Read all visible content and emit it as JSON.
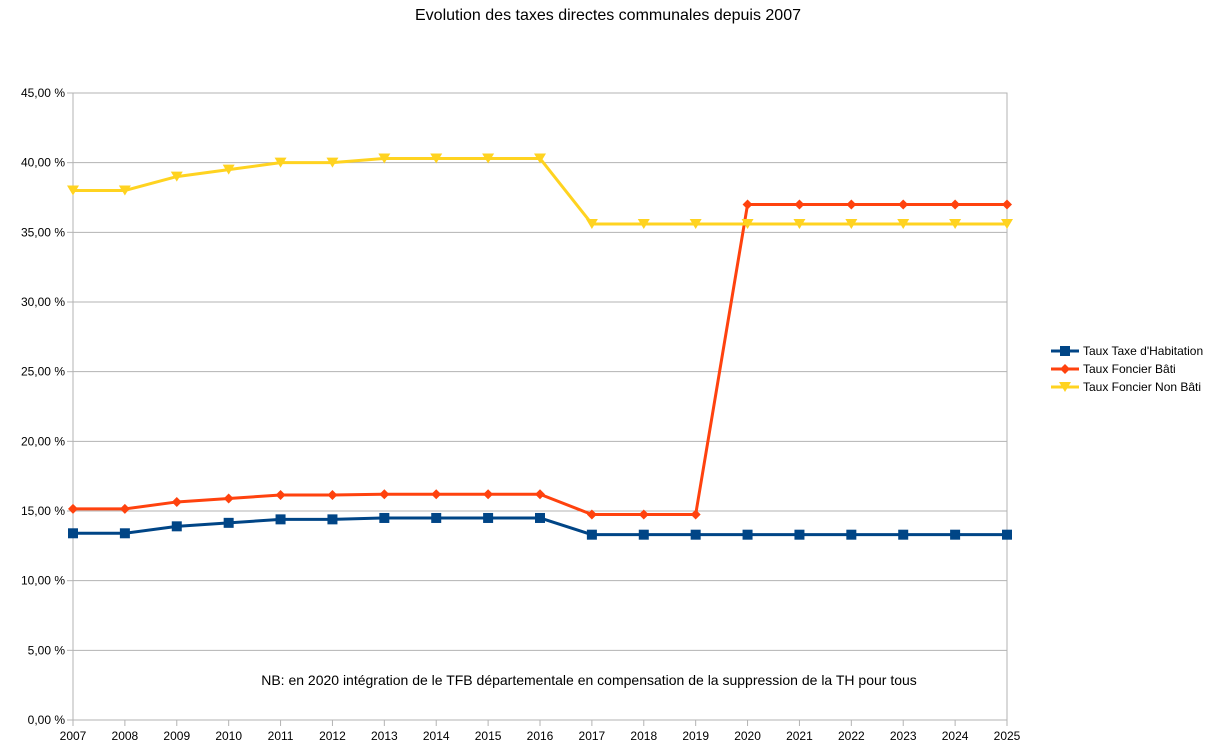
{
  "chart_data": {
    "type": "line",
    "title": "Evolution des taxes directes communales depuis 2007",
    "annotation": "NB: en 2020 intégration de le TFB départementale en compensation de la suppression de la TH pour tous",
    "x": [
      "2007",
      "2008",
      "2009",
      "2010",
      "2011",
      "2012",
      "2013",
      "2014",
      "2015",
      "2016",
      "2017",
      "2018",
      "2019",
      "2020",
      "2021",
      "2022",
      "2023",
      "2024",
      "2025"
    ],
    "ylim": [
      0,
      45
    ],
    "y_ticks": [
      0,
      5,
      10,
      15,
      20,
      25,
      30,
      35,
      40,
      45
    ],
    "y_tick_labels": [
      "0,00 %",
      "5,00 %",
      "10,00 %",
      "15,00 %",
      "20,00 %",
      "25,00 %",
      "30,00 %",
      "35,00 %",
      "40,00 %",
      "45,00 %"
    ],
    "grid": true,
    "legend_position": "right",
    "series": [
      {
        "name": "Taux Taxe d'Habitation",
        "color": "#004586",
        "marker": "square",
        "values": [
          13.4,
          13.4,
          13.9,
          14.15,
          14.4,
          14.4,
          14.5,
          14.5,
          14.5,
          14.5,
          13.3,
          13.3,
          13.3,
          13.3,
          13.3,
          13.3,
          13.3,
          13.3,
          13.3
        ]
      },
      {
        "name": "Taux Foncier Bâti",
        "color": "#ff420e",
        "marker": "diamond",
        "values": [
          15.15,
          15.15,
          15.65,
          15.9,
          16.15,
          16.15,
          16.2,
          16.2,
          16.2,
          16.2,
          14.75,
          14.75,
          14.75,
          37.0,
          37.0,
          37.0,
          37.0,
          37.0,
          37.0
        ]
      },
      {
        "name": "Taux Foncier Non Bâti",
        "color": "#ffd320",
        "marker": "triangle-down",
        "values": [
          38.0,
          38.0,
          39.0,
          39.5,
          40.0,
          40.0,
          40.3,
          40.3,
          40.3,
          40.3,
          35.6,
          35.6,
          35.6,
          35.6,
          35.6,
          35.6,
          35.6,
          35.6,
          35.6
        ]
      }
    ]
  }
}
